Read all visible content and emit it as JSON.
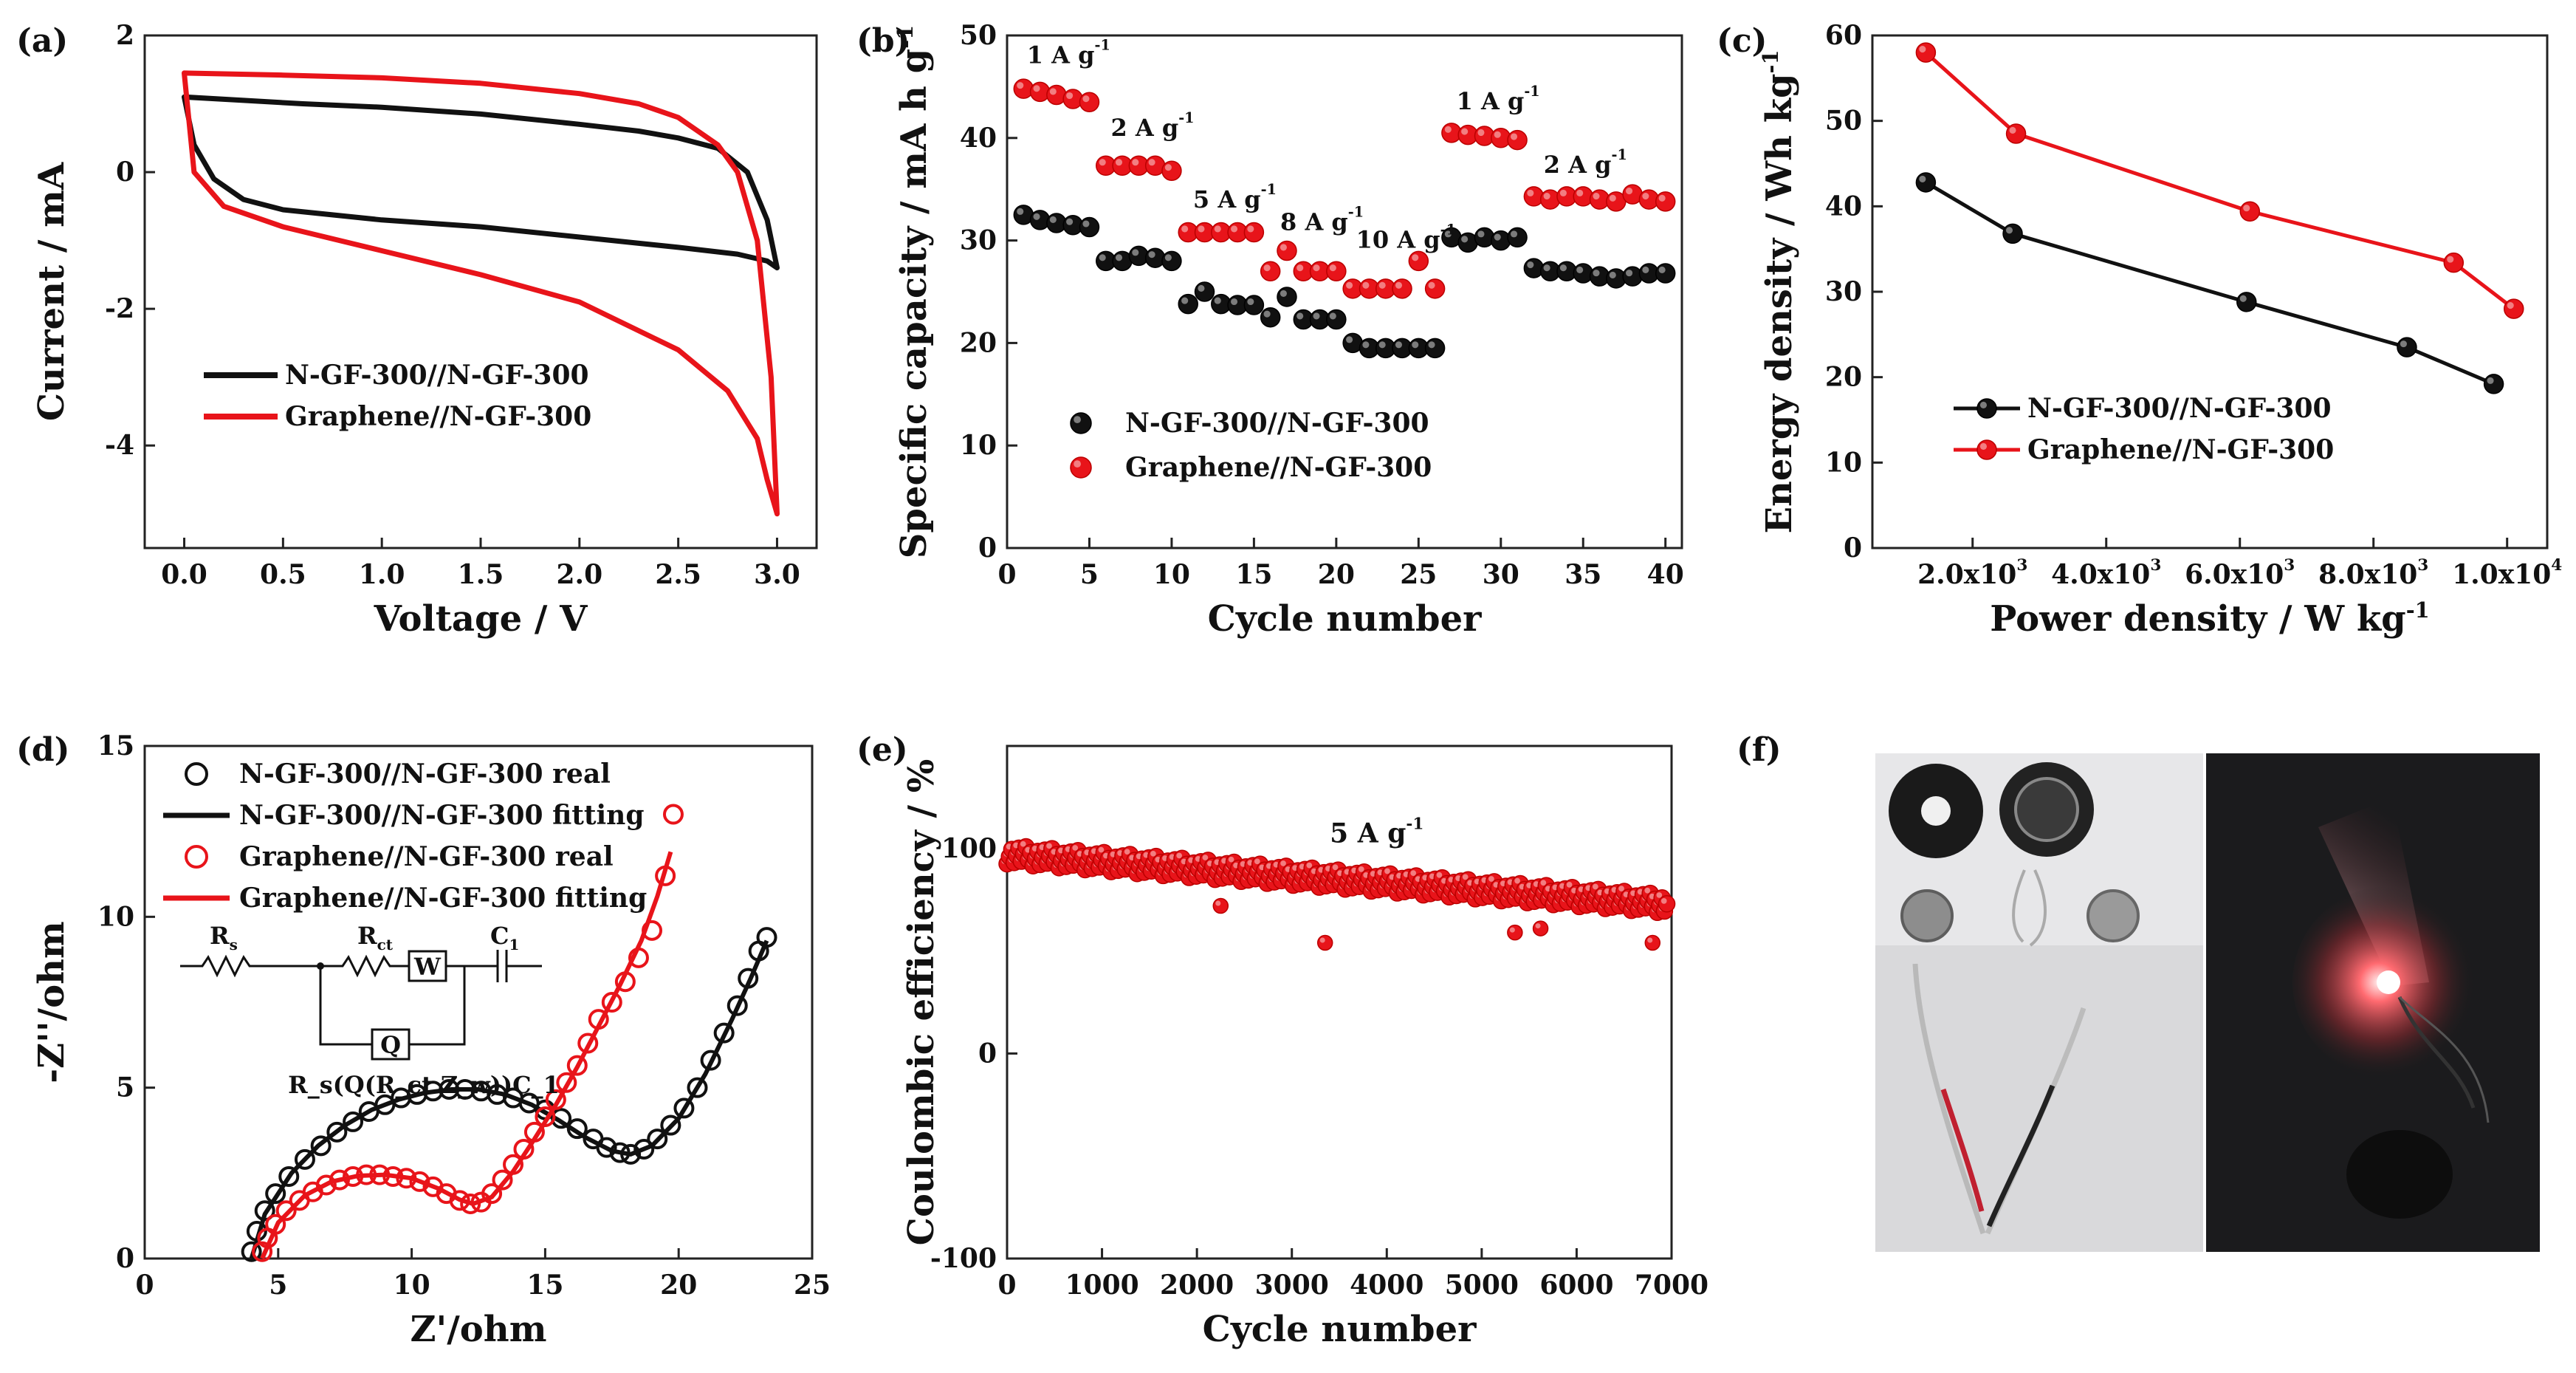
{
  "colors": {
    "black": "#111111",
    "red": "#e8141a",
    "axis": "#222222"
  },
  "chart_data": [
    {
      "id": "a",
      "type": "line",
      "panel_label": "(a)",
      "xlabel": "Voltage / V",
      "ylabel": "Current / mA",
      "xlim": [
        -0.2,
        3.2
      ],
      "ylim": [
        -5.5,
        2
      ],
      "xticks": [
        0,
        0.5,
        1,
        1.5,
        2,
        2.5,
        3
      ],
      "xticklabels": [
        "0.0",
        "0.5",
        "1.0",
        "1.5",
        "2.0",
        "2.5",
        "3.0"
      ],
      "yticks": [
        -4,
        -2,
        0,
        2
      ],
      "yticklabels": [
        "-4",
        "-2",
        "0",
        "2"
      ],
      "legend": "bottom-left",
      "series": [
        {
          "name": "N-GF-300//N-GF-300",
          "color": "#111111",
          "closed": true,
          "x": [
            0,
            0.3,
            0.6,
            1,
            1.5,
            2,
            2.3,
            2.5,
            2.7,
            2.85,
            2.95,
            3.0,
            2.95,
            2.8,
            2.5,
            2,
            1.5,
            1,
            0.5,
            0.3,
            0.15,
            0.05,
            0
          ],
          "y": [
            1.1,
            1.05,
            1.0,
            0.95,
            0.85,
            0.7,
            0.6,
            0.5,
            0.35,
            0.0,
            -0.7,
            -1.4,
            -1.3,
            -1.2,
            -1.1,
            -0.95,
            -0.8,
            -0.7,
            -0.55,
            -0.4,
            -0.1,
            0.4,
            1.1
          ]
        },
        {
          "name": "Graphene//N-GF-300",
          "color": "#e8141a",
          "closed": true,
          "x": [
            0,
            0.5,
            1,
            1.5,
            2,
            2.3,
            2.5,
            2.7,
            2.8,
            2.9,
            2.97,
            3.0,
            2.95,
            2.9,
            2.75,
            2.5,
            2,
            1.5,
            1,
            0.5,
            0.2,
            0.05,
            0
          ],
          "y": [
            1.45,
            1.42,
            1.38,
            1.3,
            1.15,
            1.0,
            0.8,
            0.4,
            0.0,
            -1.0,
            -3.0,
            -5.0,
            -4.5,
            -3.9,
            -3.2,
            -2.6,
            -1.9,
            -1.5,
            -1.15,
            -0.8,
            -0.5,
            0.0,
            1.45
          ]
        }
      ]
    },
    {
      "id": "b",
      "type": "scatter",
      "panel_label": "(b)",
      "xlabel": "Cycle number",
      "ylabel": "Specific capacity / mA h g",
      "ylabel_sup": "-1",
      "xlim": [
        0,
        41
      ],
      "ylim": [
        0,
        50
      ],
      "xticks": [
        0,
        5,
        10,
        15,
        20,
        25,
        30,
        35,
        40
      ],
      "yticks": [
        0,
        10,
        20,
        30,
        40,
        50
      ],
      "legend": "center-left",
      "series": [
        {
          "name": "N-GF-300//N-GF-300",
          "color": "#111111",
          "x": [
            1,
            2,
            3,
            4,
            5,
            6,
            7,
            8,
            9,
            10,
            11,
            12,
            13,
            14,
            15,
            16,
            17,
            18,
            19,
            20,
            21,
            22,
            23,
            24,
            25,
            26,
            27,
            28,
            29,
            30,
            31,
            32,
            33,
            34,
            35,
            36,
            37,
            38,
            39,
            40
          ],
          "y": [
            32.5,
            32,
            31.7,
            31.5,
            31.3,
            28,
            28,
            28.5,
            28.3,
            28,
            23.8,
            25,
            23.8,
            23.7,
            23.7,
            22.5,
            24.5,
            22.3,
            22.3,
            22.3,
            20,
            19.5,
            19.5,
            19.5,
            19.5,
            19.5,
            30.3,
            29.8,
            30.3,
            30,
            30.3,
            27.3,
            27,
            27,
            26.8,
            26.5,
            26.3,
            26.5,
            26.8,
            26.8
          ]
        },
        {
          "name": "Graphene//N-GF-300",
          "color": "#e8141a",
          "x": [
            1,
            2,
            3,
            4,
            5,
            6,
            7,
            8,
            9,
            10,
            11,
            12,
            13,
            14,
            15,
            16,
            17,
            18,
            19,
            20,
            21,
            22,
            23,
            24,
            25,
            26,
            27,
            28,
            29,
            30,
            31,
            32,
            33,
            34,
            35,
            36,
            37,
            38,
            39,
            40
          ],
          "y": [
            44.8,
            44.5,
            44.2,
            43.8,
            43.5,
            37.3,
            37.3,
            37.3,
            37.3,
            36.8,
            30.8,
            30.8,
            30.8,
            30.8,
            30.8,
            27,
            29,
            27,
            27,
            27,
            25.3,
            25.3,
            25.3,
            25.3,
            28,
            25.3,
            40.5,
            40.3,
            40.2,
            40,
            39.8,
            34.3,
            34,
            34.3,
            34.3,
            34,
            33.8,
            34.5,
            34,
            33.8
          ]
        }
      ],
      "annotations": [
        {
          "text": "1 A g",
          "sup": "-1",
          "x": 1.2,
          "y": 47.3
        },
        {
          "text": "2 A g",
          "sup": "-1",
          "x": 6.3,
          "y": 40.2
        },
        {
          "text": "5 A g",
          "sup": "-1",
          "x": 11.3,
          "y": 33.2
        },
        {
          "text": "8 A g",
          "sup": "-1",
          "x": 16.6,
          "y": 31
        },
        {
          "text": "10 A g",
          "sup": "-1",
          "x": 21.2,
          "y": 29.3
        },
        {
          "text": "1 A g",
          "sup": "-1",
          "x": 27.3,
          "y": 42.8
        },
        {
          "text": "2 A g",
          "sup": "-1",
          "x": 32.6,
          "y": 36.6
        }
      ]
    },
    {
      "id": "c",
      "type": "line",
      "panel_label": "(c)",
      "xlabel": "Power density / W kg",
      "xlabel_sup": "-1",
      "ylabel": "Energy density / Wh kg",
      "ylabel_sup": "-1",
      "xlim": [
        500,
        10600
      ],
      "ylim": [
        0,
        60
      ],
      "xticks": [
        2000,
        4000,
        6000,
        8000,
        10000
      ],
      "xticklabels": [
        "2.0x10",
        "4.0x10",
        "6.0x10",
        "8.0x10",
        "1.0x10"
      ],
      "xticksups": [
        "3",
        "3",
        "3",
        "3",
        "4"
      ],
      "yticks": [
        0,
        10,
        20,
        30,
        40,
        50,
        60
      ],
      "legend": "bottom-left",
      "series": [
        {
          "name": "N-GF-300//N-GF-300",
          "color": "#111111",
          "x": [
            1300,
            2600,
            6100,
            8500,
            9800
          ],
          "y": [
            42.8,
            36.8,
            28.8,
            23.5,
            19.2
          ]
        },
        {
          "name": "Graphene//N-GF-300",
          "color": "#e8141a",
          "x": [
            1300,
            2650,
            6150,
            9200,
            10100
          ],
          "y": [
            58,
            48.5,
            39.4,
            33.4,
            28
          ]
        }
      ]
    },
    {
      "id": "d",
      "type": "scatter",
      "panel_label": "(d)",
      "xlabel": "Z'/ohm",
      "ylabel": "-Z''/ohm",
      "xlim": [
        0,
        25
      ],
      "ylim": [
        0,
        15
      ],
      "xticks": [
        0,
        5,
        10,
        15,
        20,
        25
      ],
      "yticks": [
        0,
        5,
        10,
        15
      ],
      "legend": "top-left",
      "series": [
        {
          "name": "N-GF-300//N-GF-300 real",
          "color": "#111111",
          "marker": "open-circle",
          "x": [
            4.0,
            4.2,
            4.5,
            4.9,
            5.4,
            6.0,
            6.6,
            7.2,
            7.8,
            8.4,
            9.0,
            9.6,
            10.2,
            10.8,
            11.4,
            12.0,
            12.6,
            13.2,
            13.8,
            14.4,
            15.0,
            15.6,
            16.2,
            16.8,
            17.3,
            17.8,
            18.2,
            18.7,
            19.2,
            19.7,
            20.2,
            20.7,
            21.2,
            21.7,
            22.2,
            22.6,
            23.0,
            23.3
          ],
          "y": [
            0.2,
            0.8,
            1.4,
            1.9,
            2.4,
            2.9,
            3.3,
            3.7,
            4.0,
            4.3,
            4.5,
            4.7,
            4.8,
            4.9,
            4.95,
            4.95,
            4.9,
            4.8,
            4.7,
            4.55,
            4.35,
            4.1,
            3.8,
            3.5,
            3.25,
            3.1,
            3.05,
            3.2,
            3.5,
            3.9,
            4.4,
            5.0,
            5.8,
            6.6,
            7.4,
            8.2,
            9.0,
            9.4
          ]
        },
        {
          "name": "N-GF-300//N-GF-300 fitting",
          "color": "#111111",
          "marker": "line",
          "x": [
            4.0,
            4.5,
            5.5,
            6.5,
            7.5,
            8.5,
            9.5,
            10.5,
            11.5,
            12.5,
            13.5,
            14.5,
            15.5,
            16.5,
            17.5,
            18.2,
            19.0,
            20.0,
            21.0,
            22.0,
            22.7,
            23.3
          ],
          "y": [
            0.0,
            1.3,
            2.5,
            3.3,
            3.9,
            4.35,
            4.65,
            4.85,
            4.95,
            4.95,
            4.8,
            4.5,
            4.05,
            3.55,
            3.15,
            3.05,
            3.3,
            4.1,
            5.4,
            7.0,
            8.2,
            9.3
          ]
        },
        {
          "name": "Graphene//N-GF-300 real",
          "color": "#e8141a",
          "marker": "open-circle",
          "x": [
            4.4,
            4.6,
            4.9,
            5.3,
            5.8,
            6.3,
            6.8,
            7.3,
            7.8,
            8.3,
            8.8,
            9.3,
            9.8,
            10.3,
            10.8,
            11.3,
            11.8,
            12.2,
            12.6,
            13.0,
            13.4,
            13.8,
            14.2,
            14.6,
            15.0,
            15.4,
            15.8,
            16.2,
            16.6,
            17.0,
            17.5,
            18.0,
            18.5,
            19.0,
            19.5,
            19.8
          ],
          "y": [
            0.2,
            0.6,
            1.0,
            1.4,
            1.7,
            1.95,
            2.15,
            2.3,
            2.4,
            2.45,
            2.45,
            2.4,
            2.35,
            2.25,
            2.1,
            1.9,
            1.7,
            1.6,
            1.65,
            1.9,
            2.3,
            2.75,
            3.2,
            3.7,
            4.15,
            4.65,
            5.15,
            5.65,
            6.3,
            7.0,
            7.5,
            8.1,
            8.8,
            9.6,
            11.2,
            13.0
          ]
        },
        {
          "name": "Graphene//N-GF-300 fitting",
          "color": "#e8141a",
          "marker": "line",
          "x": [
            4.4,
            5.0,
            6.0,
            7.0,
            8.0,
            9.0,
            10.0,
            11.0,
            11.8,
            12.3,
            13.0,
            13.8,
            14.6,
            15.4,
            16.2,
            17.0,
            17.8,
            18.6,
            19.2,
            19.7
          ],
          "y": [
            0.0,
            1.05,
            1.85,
            2.25,
            2.42,
            2.45,
            2.35,
            2.05,
            1.72,
            1.6,
            1.8,
            2.55,
            3.5,
            4.5,
            5.6,
            6.8,
            8.0,
            9.3,
            10.6,
            11.9
          ]
        }
      ],
      "inset": {
        "r_label": "R",
        "r_sub": "s",
        "rct_label": "R",
        "rct_sub": "ct",
        "w_label": "W",
        "c_label": "C",
        "c_sub": "1",
        "q_label": "Q",
        "formula": "R_s(Q(R_ct Z_w))C_1"
      }
    },
    {
      "id": "e",
      "type": "scatter",
      "panel_label": "(e)",
      "xlabel": "Cycle number",
      "ylabel": "Coulombic efficiency / %",
      "xlim": [
        0,
        7000
      ],
      "ylim": [
        -100,
        150
      ],
      "xticks": [
        0,
        1000,
        2000,
        3000,
        4000,
        5000,
        6000,
        7000
      ],
      "yticks": [
        -100,
        0,
        100
      ],
      "series": [
        {
          "name": "Coulombic efficiency",
          "color": "#e8141a",
          "x_start": 0,
          "x_end": 6950,
          "y_start_mean": 97,
          "y_end_mean": 73,
          "outliers_x": [
            2250,
            3350,
            5350,
            5620,
            6800
          ],
          "outliers_y": [
            72,
            54,
            59,
            61,
            54
          ]
        }
      ],
      "annotations": [
        {
          "text": "5 A g",
          "sup": "-1",
          "x": 3400,
          "y": 103
        }
      ]
    }
  ],
  "panel_f": {
    "panel_label": "(f)"
  }
}
